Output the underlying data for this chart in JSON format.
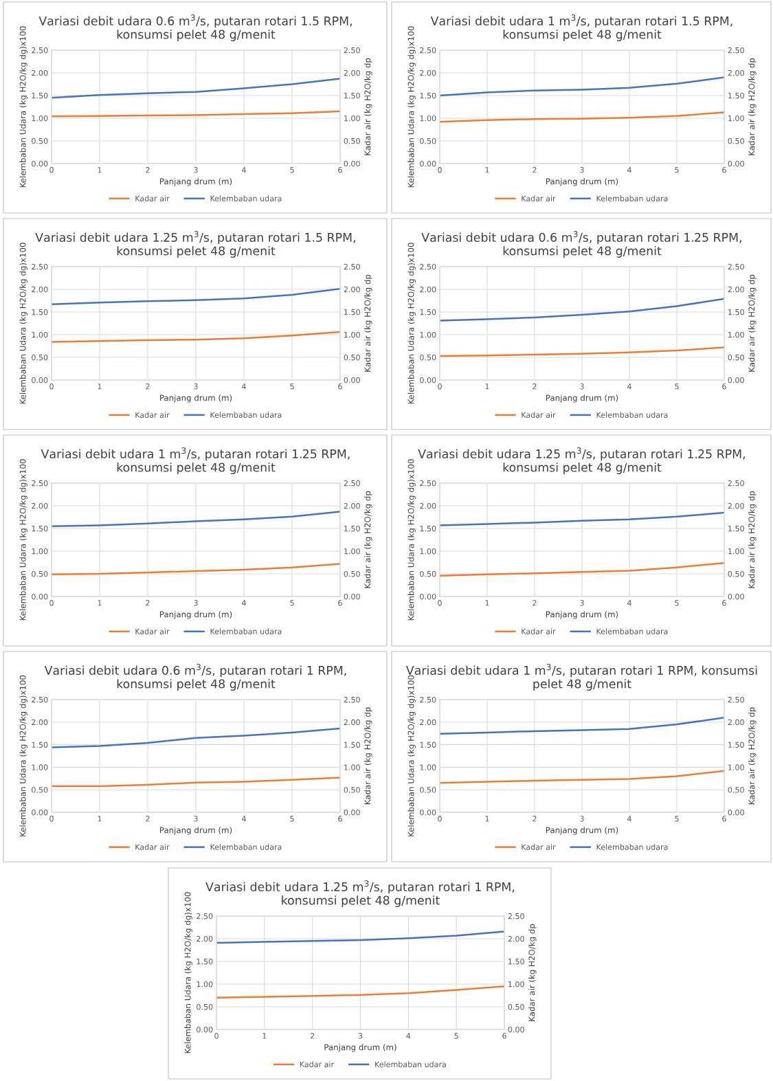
{
  "chart_data": [
    {
      "type": "line",
      "title": "Variasi debit udara 0.6 m$^{3}$/s, putaran rotari 1.5 RPM,\nkonsumsi pelet 48 g/menit",
      "xlabel": "Panjang drum (m)",
      "ylabel": "Kelembaban Udara (kg H2O/kg dg)x100",
      "y2label": "Kadar air (kg H2O/kg dp",
      "x": [
        0,
        1,
        2,
        3,
        4,
        5,
        6
      ],
      "xlim": [
        0,
        6
      ],
      "xticks": [
        0,
        1,
        2,
        3,
        4,
        5,
        6
      ],
      "ylim": [
        0,
        2.5
      ],
      "yticks": [
        {
          "value": 0,
          "label": "0.00"
        },
        {
          "value": 0.5,
          "label": "0.50"
        },
        {
          "value": 1,
          "label": "1.00"
        },
        {
          "value": 1.5,
          "label": "1.50"
        },
        {
          "value": 2,
          "label": "2.00"
        },
        {
          "value": 2.5,
          "label": "2.50"
        }
      ],
      "y2lim": [
        0,
        2.5
      ],
      "y2ticks": [
        {
          "value": 0,
          "label": "0.00"
        },
        {
          "value": 0.5,
          "label": "0.50"
        },
        {
          "value": 1,
          "label": "1.00"
        },
        {
          "value": 1.5,
          "label": "1.50"
        },
        {
          "value": 2,
          "label": "2.00"
        },
        {
          "value": 2.5,
          "label": "2.50"
        }
      ],
      "grid": true,
      "legend": "bottom",
      "series": [
        {
          "name": "Kadar air",
          "color": "#ed7d31",
          "axis": "y2",
          "values": [
            1.04,
            1.05,
            1.06,
            1.07,
            1.09,
            1.11,
            1.15
          ]
        },
        {
          "name": "Kelembaban udara",
          "color": "#4472c4",
          "values": [
            1.45,
            1.51,
            1.55,
            1.58,
            1.66,
            1.75,
            1.87
          ]
        }
      ]
    },
    {
      "type": "line",
      "title": "Variasi debit udara 1 m$^{3}$/s, putaran rotari 1.5 RPM,\nkonsumsi pelet 48 g/menit",
      "xlabel": "Panjang drum (m)",
      "ylabel": "Kelembaban Udara (kg H2O/kg dg)x100",
      "y2label": "Kadar air (kg H2O/kg dp",
      "x": [
        0,
        1,
        2,
        3,
        4,
        5,
        6
      ],
      "xlim": [
        0,
        6
      ],
      "xticks": [
        0,
        1,
        2,
        3,
        4,
        5,
        6
      ],
      "ylim": [
        0,
        2.5
      ],
      "yticks": [
        {
          "value": 0,
          "label": "0.00"
        },
        {
          "value": 0.5,
          "label": "0.50"
        },
        {
          "value": 1,
          "label": "1.00"
        },
        {
          "value": 1.5,
          "label": "1.50"
        },
        {
          "value": 2,
          "label": "2.00"
        },
        {
          "value": 2.5,
          "label": "2.50"
        }
      ],
      "y2lim": [
        0,
        2.5
      ],
      "y2ticks": [
        {
          "value": 0,
          "label": "0.00"
        },
        {
          "value": 0.5,
          "label": "0.50"
        },
        {
          "value": 1,
          "label": "1.00"
        },
        {
          "value": 1.5,
          "label": "1.50"
        },
        {
          "value": 2,
          "label": "2.00"
        },
        {
          "value": 2.5,
          "label": "2.50"
        }
      ],
      "grid": true,
      "legend": "bottom",
      "series": [
        {
          "name": "Kadar air",
          "color": "#ed7d31",
          "axis": "y2",
          "values": [
            0.92,
            0.96,
            0.98,
            0.99,
            1.01,
            1.05,
            1.13
          ]
        },
        {
          "name": "Kelembaban udara",
          "color": "#4472c4",
          "values": [
            1.5,
            1.57,
            1.61,
            1.63,
            1.67,
            1.76,
            1.9
          ]
        }
      ]
    },
    {
      "type": "line",
      "title": "Variasi debit udara 1.25 m$^{3}$/s, putaran rotari 1.5 RPM,\nkonsumsi pelet 48 g/menit",
      "xlabel": "Panjang drum (m)",
      "ylabel": "Kelembaban Udara (kg H2O/kg dg)x100",
      "y2label": "Kadar air (kg H2O/kg dp",
      "x": [
        0,
        1,
        2,
        3,
        4,
        5,
        6
      ],
      "xlim": [
        0,
        6
      ],
      "xticks": [
        0,
        1,
        2,
        3,
        4,
        5,
        6
      ],
      "ylim": [
        0,
        2.5
      ],
      "yticks": [
        {
          "value": 0,
          "label": "0.00"
        },
        {
          "value": 0.5,
          "label": "0.50"
        },
        {
          "value": 1,
          "label": "1.00"
        },
        {
          "value": 1.5,
          "label": "1.50"
        },
        {
          "value": 2,
          "label": "2.00"
        },
        {
          "value": 2.5,
          "label": "2.50"
        }
      ],
      "y2lim": [
        0,
        2.5
      ],
      "y2ticks": [
        {
          "value": 0,
          "label": "0.00"
        },
        {
          "value": 0.5,
          "label": "0.50"
        },
        {
          "value": 1,
          "label": "1.00"
        },
        {
          "value": 1.5,
          "label": "1.50"
        },
        {
          "value": 2,
          "label": "2.00"
        },
        {
          "value": 2.5,
          "label": "2.50"
        }
      ],
      "grid": true,
      "legend": "bottom",
      "series": [
        {
          "name": "Kadar air",
          "color": "#ed7d31",
          "axis": "y2",
          "values": [
            0.84,
            0.86,
            0.88,
            0.89,
            0.92,
            0.98,
            1.06
          ]
        },
        {
          "name": "Kelembaban udara",
          "color": "#4472c4",
          "values": [
            1.67,
            1.71,
            1.74,
            1.76,
            1.8,
            1.88,
            2.01
          ]
        }
      ]
    },
    {
      "type": "line",
      "title": "Variasi debit udara 0.6 m$^{3}$/s, putaran rotari 1.25 RPM,\nkonsumsi pelet 48 g/menit",
      "xlabel": "Panjang drum (m)",
      "ylabel": "Kelembaban Udara (kg H2O/kg dg)x100",
      "y2label": "Kadar air (kg H2O/kg dp",
      "x": [
        0,
        1,
        2,
        3,
        4,
        5,
        6
      ],
      "xlim": [
        0,
        6
      ],
      "xticks": [
        0,
        1,
        2,
        3,
        4,
        5,
        6
      ],
      "ylim": [
        0,
        2.5
      ],
      "yticks": [
        {
          "value": 0,
          "label": "0.00"
        },
        {
          "value": 0.5,
          "label": "0.50"
        },
        {
          "value": 1,
          "label": "1.00"
        },
        {
          "value": 1.5,
          "label": "1.50"
        },
        {
          "value": 2,
          "label": "2.00"
        },
        {
          "value": 2.5,
          "label": "2.50"
        }
      ],
      "y2lim": [
        0,
        2.5
      ],
      "y2ticks": [
        {
          "value": 0,
          "label": "0.00"
        },
        {
          "value": 0.5,
          "label": "0.50"
        },
        {
          "value": 1,
          "label": "1.00"
        },
        {
          "value": 1.5,
          "label": "1.50"
        },
        {
          "value": 2,
          "label": "2.00"
        },
        {
          "value": 2.5,
          "label": "2.50"
        }
      ],
      "grid": true,
      "legend": "bottom",
      "series": [
        {
          "name": "Kadar air",
          "color": "#ed7d31",
          "axis": "y2",
          "values": [
            0.53,
            0.54,
            0.56,
            0.58,
            0.61,
            0.65,
            0.72
          ]
        },
        {
          "name": "Kelembaban udara",
          "color": "#4472c4",
          "values": [
            1.31,
            1.34,
            1.38,
            1.44,
            1.51,
            1.63,
            1.79
          ]
        }
      ]
    },
    {
      "type": "line",
      "title": "Variasi debit udara 1 m$^{3}$/s, putaran rotari 1.25 RPM,\nkonsumsi pelet 48 g/menit",
      "xlabel": "Panjang drum (m)",
      "ylabel": "Kelembaban Udara (kg H2O/kg dg)x100",
      "y2label": "Kadar air (kg H2O/kg dp",
      "x": [
        0,
        1,
        2,
        3,
        4,
        5,
        6
      ],
      "xlim": [
        0,
        6
      ],
      "xticks": [
        0,
        1,
        2,
        3,
        4,
        5,
        6
      ],
      "ylim": [
        0,
        2.5
      ],
      "yticks": [
        {
          "value": 0,
          "label": "0.00"
        },
        {
          "value": 0.5,
          "label": "0.50"
        },
        {
          "value": 1,
          "label": "1.00"
        },
        {
          "value": 1.5,
          "label": "1.50"
        },
        {
          "value": 2,
          "label": "2.00"
        },
        {
          "value": 2.5,
          "label": "2.50"
        }
      ],
      "y2lim": [
        0,
        2.5
      ],
      "y2ticks": [
        {
          "value": 0,
          "label": "0.00"
        },
        {
          "value": 0.5,
          "label": "0.50"
        },
        {
          "value": 1,
          "label": "1.00"
        },
        {
          "value": 1.5,
          "label": "1.50"
        },
        {
          "value": 2,
          "label": "2.00"
        },
        {
          "value": 2.5,
          "label": "2.50"
        }
      ],
      "grid": true,
      "legend": "bottom",
      "series": [
        {
          "name": "Kadar air",
          "color": "#ed7d31",
          "axis": "y2",
          "values": [
            0.49,
            0.5,
            0.53,
            0.56,
            0.59,
            0.64,
            0.72
          ]
        },
        {
          "name": "Kelembaban udara",
          "color": "#4472c4",
          "values": [
            1.55,
            1.57,
            1.61,
            1.66,
            1.7,
            1.76,
            1.87
          ]
        }
      ]
    },
    {
      "type": "line",
      "title": "Variasi debit udara 1.25 m$^{3}$/s, putaran rotari 1.25 RPM,\nkonsumsi pelet 48 g/menit",
      "xlabel": "Panjang drum (m)",
      "ylabel": "Kelembaban Udara (kg H2O/kg dg)x100",
      "y2label": "Kadar air (kg H2O/kg dp",
      "x": [
        0,
        1,
        2,
        3,
        4,
        5,
        6
      ],
      "xlim": [
        0,
        6
      ],
      "xticks": [
        0,
        1,
        2,
        3,
        4,
        5,
        6
      ],
      "ylim": [
        0,
        2.5
      ],
      "yticks": [
        {
          "value": 0,
          "label": "0.00"
        },
        {
          "value": 0.5,
          "label": "0.50"
        },
        {
          "value": 1,
          "label": "1.00"
        },
        {
          "value": 1.5,
          "label": "1.50"
        },
        {
          "value": 2,
          "label": "2.00"
        },
        {
          "value": 2.5,
          "label": "2.50"
        }
      ],
      "y2lim": [
        0,
        2.5
      ],
      "y2ticks": [
        {
          "value": 0,
          "label": "0.00"
        },
        {
          "value": 0.5,
          "label": "0.50"
        },
        {
          "value": 1,
          "label": "1.00"
        },
        {
          "value": 1.5,
          "label": "1.50"
        },
        {
          "value": 2,
          "label": "2.00"
        },
        {
          "value": 2.5,
          "label": "2.50"
        }
      ],
      "grid": true,
      "legend": "bottom",
      "series": [
        {
          "name": "Kadar air",
          "color": "#ed7d31",
          "axis": "y2",
          "values": [
            0.46,
            0.49,
            0.51,
            0.54,
            0.57,
            0.64,
            0.74
          ]
        },
        {
          "name": "Kelembaban udara",
          "color": "#4472c4",
          "values": [
            1.57,
            1.6,
            1.63,
            1.67,
            1.7,
            1.76,
            1.85
          ]
        }
      ]
    },
    {
      "type": "line",
      "title": "Variasi debit udara 0.6 m$^{3}$/s, putaran rotari 1 RPM,\nkonsumsi pelet 48 g/menit",
      "xlabel": "Panjang drum (m)",
      "ylabel": "Kelembaban Udara (kg H2O/kg dg)x100",
      "y2label": "Kadar air (kg H2O/kg dp",
      "x": [
        0,
        1,
        2,
        3,
        4,
        5,
        6
      ],
      "xlim": [
        0,
        6
      ],
      "xticks": [
        0,
        1,
        2,
        3,
        4,
        5,
        6
      ],
      "ylim": [
        0,
        2.5
      ],
      "yticks": [
        {
          "value": 0,
          "label": "0.00"
        },
        {
          "value": 0.5,
          "label": "0.50"
        },
        {
          "value": 1,
          "label": "1.00"
        },
        {
          "value": 1.5,
          "label": "1.50"
        },
        {
          "value": 2,
          "label": "2.00"
        },
        {
          "value": 2.5,
          "label": "2.50"
        }
      ],
      "y2lim": [
        0,
        2.5
      ],
      "y2ticks": [
        {
          "value": 0,
          "label": "0.00"
        },
        {
          "value": 0.5,
          "label": "0.50"
        },
        {
          "value": 1,
          "label": "1.00"
        },
        {
          "value": 1.5,
          "label": "1.50"
        },
        {
          "value": 2,
          "label": "2.00"
        },
        {
          "value": 2.5,
          "label": "2.50"
        }
      ],
      "grid": true,
      "legend": "bottom",
      "series": [
        {
          "name": "Kadar air",
          "color": "#ed7d31",
          "axis": "y2",
          "values": [
            0.58,
            0.58,
            0.61,
            0.66,
            0.68,
            0.72,
            0.77
          ]
        },
        {
          "name": "Kelembaban udara",
          "color": "#4472c4",
          "values": [
            1.44,
            1.47,
            1.54,
            1.65,
            1.7,
            1.77,
            1.86
          ]
        }
      ]
    },
    {
      "type": "line",
      "title": "Variasi debit udara 1 m$^{3}$/s, putaran rotari 1 RPM, konsumsi\npelet 48 g/menit",
      "xlabel": "Panjang drum (m)",
      "ylabel": "Kelembaban Udara (kg H2O/kg dg)x100",
      "y2label": "Kadar air (kg H2O/kg dp",
      "x": [
        0,
        1,
        2,
        3,
        4,
        5,
        6
      ],
      "xlim": [
        0,
        6
      ],
      "xticks": [
        0,
        1,
        2,
        3,
        4,
        5,
        6
      ],
      "ylim": [
        0,
        2.5
      ],
      "yticks": [
        {
          "value": 0,
          "label": "0.00"
        },
        {
          "value": 0.5,
          "label": "0.50"
        },
        {
          "value": 1,
          "label": "1.00"
        },
        {
          "value": 1.5,
          "label": "1.50"
        },
        {
          "value": 2,
          "label": "2.00"
        },
        {
          "value": 2.5,
          "label": "2.50"
        }
      ],
      "y2lim": [
        0,
        2.5
      ],
      "y2ticks": [
        {
          "value": 0,
          "label": "0.00"
        },
        {
          "value": 0.5,
          "label": "0.50"
        },
        {
          "value": 1,
          "label": "1.00"
        },
        {
          "value": 1.5,
          "label": "1.50"
        },
        {
          "value": 2,
          "label": "2.00"
        },
        {
          "value": 2.5,
          "label": "2.50"
        }
      ],
      "grid": true,
      "legend": "bottom",
      "series": [
        {
          "name": "Kadar air",
          "color": "#ed7d31",
          "axis": "y2",
          "values": [
            0.65,
            0.68,
            0.7,
            0.72,
            0.74,
            0.8,
            0.92
          ]
        },
        {
          "name": "Kelembaban udara",
          "color": "#4472c4",
          "values": [
            1.74,
            1.77,
            1.8,
            1.82,
            1.85,
            1.95,
            2.1
          ]
        }
      ]
    },
    {
      "type": "line",
      "title": "Variasi debit udara 1.25 m$^{3}$/s, putaran rotari 1 RPM,\nkonsumsi pelet 48 g/menit",
      "xlabel": "Panjang drum (m)",
      "ylabel": "Kelembaban Udara (kg H2O/kg dg)x100",
      "y2label": "Kadar air (kg H2O/kg dp",
      "x": [
        0,
        1,
        2,
        3,
        4,
        5,
        6
      ],
      "xlim": [
        0,
        6
      ],
      "xticks": [
        0,
        1,
        2,
        3,
        4,
        5,
        6
      ],
      "ylim": [
        0,
        2.5
      ],
      "yticks": [
        {
          "value": 0,
          "label": "0.00"
        },
        {
          "value": 0.5,
          "label": "0.50"
        },
        {
          "value": 1,
          "label": "1.00"
        },
        {
          "value": 1.5,
          "label": "1.50"
        },
        {
          "value": 2,
          "label": "2.00"
        },
        {
          "value": 2.5,
          "label": "2.50"
        }
      ],
      "y2lim": [
        0,
        2.5
      ],
      "y2ticks": [
        {
          "value": 0,
          "label": "0.00"
        },
        {
          "value": 0.5,
          "label": "0.50"
        },
        {
          "value": 1,
          "label": "1.00"
        },
        {
          "value": 1.5,
          "label": "1.50"
        },
        {
          "value": 2,
          "label": "2.00"
        },
        {
          "value": 2.5,
          "label": "2.50"
        }
      ],
      "grid": true,
      "legend": "bottom",
      "series": [
        {
          "name": "Kadar air",
          "color": "#ed7d31",
          "axis": "y2",
          "values": [
            0.7,
            0.72,
            0.74,
            0.76,
            0.8,
            0.87,
            0.95
          ]
        },
        {
          "name": "Kelembaban udara",
          "color": "#4472c4",
          "values": [
            1.91,
            1.93,
            1.95,
            1.97,
            2.01,
            2.07,
            2.16
          ]
        }
      ]
    }
  ]
}
